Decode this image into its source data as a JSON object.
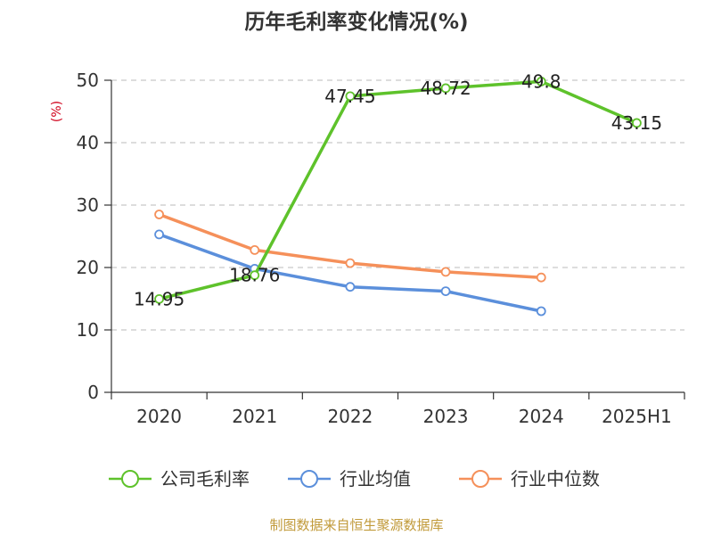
{
  "chart_data": {
    "type": "line",
    "title": "历年毛利率变化情况(%)",
    "ylabel": "(%)",
    "categories": [
      "2020",
      "2021",
      "2022",
      "2023",
      "2024",
      "2025H1"
    ],
    "ylim": [
      0,
      50
    ],
    "yticks": [
      0,
      10,
      20,
      30,
      40,
      50
    ],
    "grid": "horizontal dashed",
    "legend_position": "bottom",
    "series": [
      {
        "name": "公司毛利率",
        "color": "#5ec22b",
        "values": [
          14.95,
          18.76,
          47.45,
          48.72,
          49.8,
          43.15
        ],
        "labels": [
          "14.95",
          "18.76",
          "47.45",
          "48.72",
          "49.8",
          "43.15"
        ]
      },
      {
        "name": "行业均值",
        "color": "#5b8fdb",
        "values": [
          25.3,
          19.8,
          16.9,
          16.2,
          13.0,
          null
        ]
      },
      {
        "name": "行业中位数",
        "color": "#f5905a",
        "values": [
          28.5,
          22.8,
          20.7,
          19.3,
          18.4,
          null
        ]
      }
    ]
  },
  "footer": {
    "source": "制图数据来自恒生聚源数据库",
    "source_color": "#c19a3a"
  },
  "colors": {
    "axis": "#333333",
    "grid": "#bbbbbb",
    "ylabel": "#d0021b"
  }
}
